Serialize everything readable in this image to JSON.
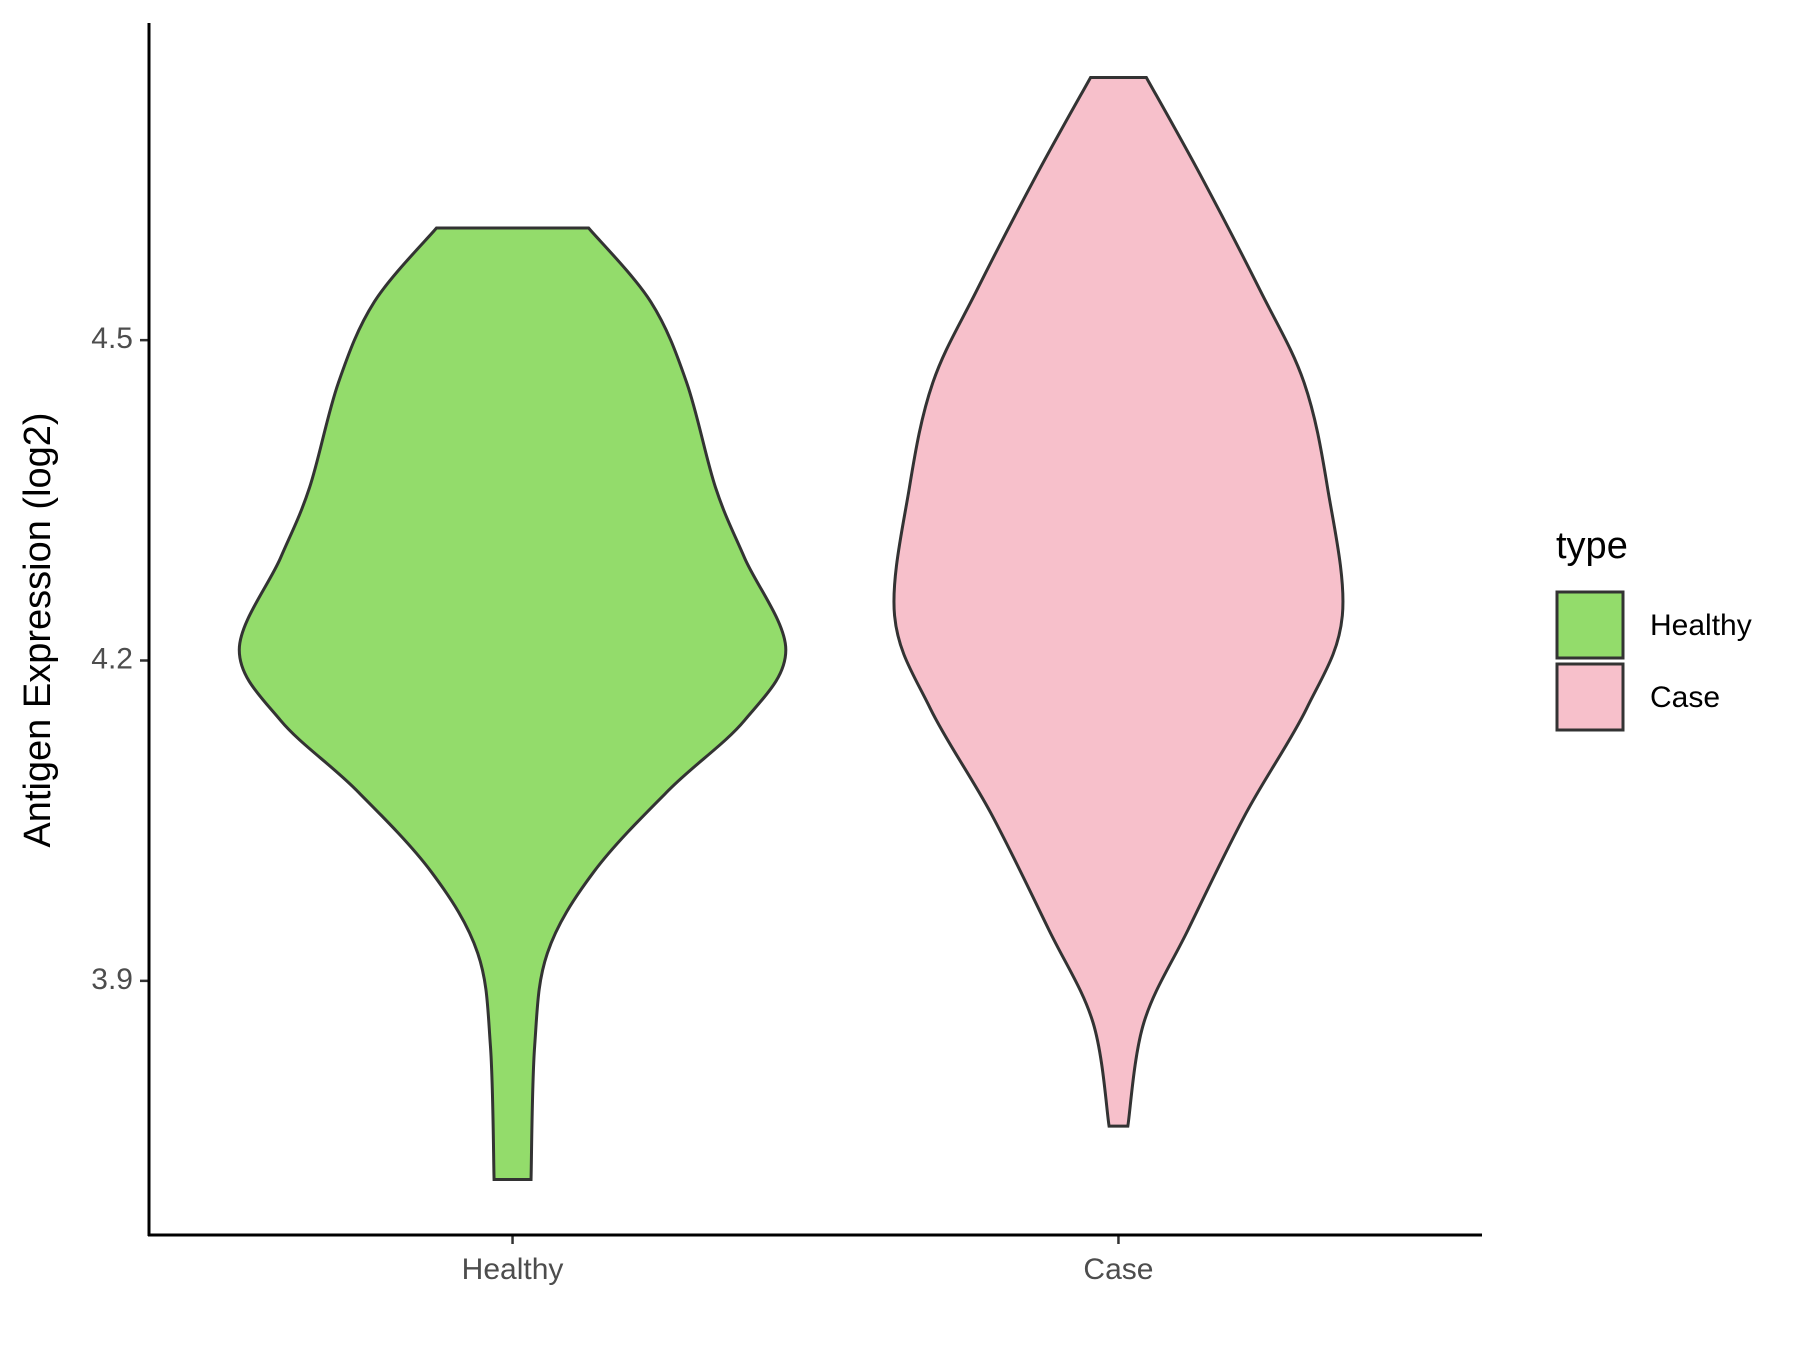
{
  "chart_data": {
    "type": "violin",
    "ylabel": "Antigen Expression (log2)",
    "categories": [
      "Healthy",
      "Case"
    ],
    "series": [
      {
        "name": "Healthy",
        "color": "#93dc6b",
        "y": [
          4.605,
          4.536,
          4.46,
          4.362,
          4.296,
          4.21,
          4.144,
          4.079,
          4.002,
          3.926,
          3.839,
          3.714
        ],
        "width": [
          0.251,
          0.456,
          0.575,
          0.67,
          0.766,
          0.902,
          0.766,
          0.517,
          0.268,
          0.115,
          0.073,
          0.061
        ]
      },
      {
        "name": "Case",
        "color": "#f7c0cb",
        "y": [
          4.746,
          4.656,
          4.547,
          4.46,
          4.362,
          4.242,
          4.155,
          4.057,
          3.948,
          3.861,
          3.764
        ],
        "width": [
          0.092,
          0.268,
          0.467,
          0.613,
          0.69,
          0.739,
          0.621,
          0.421,
          0.23,
          0.084,
          0.031
        ]
      }
    ],
    "ylim": [
      3.662,
      4.797
    ],
    "yticks": [
      3.9,
      4.2,
      4.5
    ],
    "legend_title": "type",
    "legend": "right"
  }
}
